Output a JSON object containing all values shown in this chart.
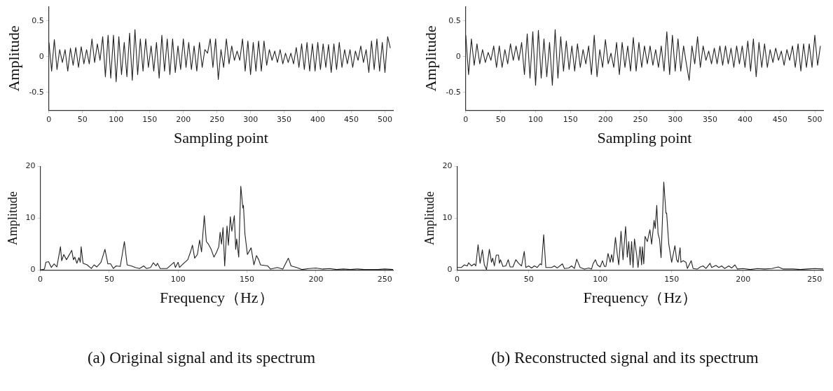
{
  "chart_data": [
    {
      "type": "line",
      "xlabel": "Sampling point",
      "ylabel": "Amplitude",
      "xlim": [
        0,
        512
      ],
      "ylim": [
        -0.75,
        0.7
      ],
      "xticks": [
        0,
        50,
        100,
        150,
        200,
        250,
        300,
        350,
        400,
        450,
        500
      ],
      "yticks": [
        -0.5,
        0,
        0.5
      ],
      "marker": "none",
      "series": [
        {
          "color": "#222222",
          "x": [
            0,
            4,
            8,
            12,
            16,
            20,
            24,
            28,
            32,
            36,
            40,
            44,
            48,
            52,
            56,
            60,
            64,
            68,
            72,
            76,
            80,
            84,
            88,
            92,
            96,
            100,
            104,
            108,
            112,
            116,
            120,
            124,
            128,
            132,
            136,
            140,
            144,
            148,
            152,
            156,
            160,
            164,
            168,
            172,
            176,
            180,
            184,
            188,
            192,
            196,
            200,
            204,
            208,
            212,
            216,
            220,
            224,
            228,
            232,
            236,
            240,
            244,
            248,
            252,
            256,
            260,
            264,
            268,
            272,
            276,
            280,
            284,
            288,
            292,
            296,
            300,
            304,
            308,
            312,
            316,
            320,
            324,
            328,
            332,
            336,
            340,
            344,
            348,
            352,
            356,
            360,
            364,
            368,
            372,
            376,
            380,
            384,
            388,
            392,
            396,
            400,
            404,
            408,
            412,
            416,
            420,
            424,
            428,
            432,
            436,
            440,
            444,
            448,
            452,
            456,
            460,
            464,
            468,
            472,
            476,
            480,
            484,
            488,
            492,
            496,
            500,
            504,
            508
          ],
          "values": [
            0.2,
            -0.2,
            0.24,
            -0.18,
            0.1,
            -0.08,
            0.1,
            -0.2,
            0.12,
            -0.12,
            0.13,
            -0.15,
            0.14,
            -0.1,
            0.1,
            -0.1,
            0.25,
            -0.08,
            0.18,
            -0.05,
            0.28,
            -0.28,
            0.3,
            -0.3,
            0.3,
            -0.35,
            0.28,
            -0.25,
            0.2,
            -0.28,
            0.33,
            -0.33,
            0.38,
            -0.25,
            0.25,
            -0.2,
            0.25,
            -0.15,
            0.15,
            -0.2,
            0.2,
            -0.3,
            0.3,
            -0.2,
            0.25,
            -0.25,
            0.25,
            -0.22,
            0.15,
            -0.18,
            0.25,
            -0.15,
            0.2,
            -0.18,
            0.15,
            -0.2,
            0.2,
            -0.15,
            0.1,
            0.05,
            0.25,
            -0.15,
            0.25,
            -0.32,
            0.1,
            -0.15,
            0.25,
            -0.1,
            0.15,
            -0.05,
            0.08,
            -0.05,
            0.25,
            -0.2,
            0.22,
            -0.25,
            0.2,
            -0.2,
            0.22,
            -0.2,
            0.22,
            -0.12,
            0.1,
            -0.05,
            0.08,
            -0.08,
            0.1,
            -0.1,
            0.05,
            -0.08,
            0.05,
            -0.1,
            0.13,
            -0.15,
            0.18,
            -0.18,
            0.2,
            -0.2,
            0.18,
            -0.2,
            0.2,
            -0.18,
            0.18,
            -0.15,
            0.17,
            -0.22,
            0.18,
            -0.18,
            0.2,
            -0.15,
            0.1,
            -0.1,
            0.1,
            -0.15,
            0.08,
            -0.05,
            0.15,
            -0.08,
            0.1,
            -0.22,
            0.22,
            -0.18,
            0.25,
            -0.2,
            0.2,
            -0.22,
            0.28,
            0.12
          ]
        }
      ]
    },
    {
      "type": "line",
      "xlabel": "Sampling point",
      "ylabel": "Amplitude",
      "xlim": [
        0,
        512
      ],
      "ylim": [
        -0.75,
        0.7
      ],
      "xticks": [
        0,
        50,
        100,
        150,
        200,
        250,
        300,
        350,
        400,
        450,
        500
      ],
      "yticks": [
        -0.5,
        0,
        0.5
      ],
      "marker": "none",
      "series": [
        {
          "color": "#222222",
          "x": [
            0,
            4,
            8,
            12,
            16,
            20,
            24,
            28,
            32,
            36,
            40,
            44,
            48,
            52,
            56,
            60,
            64,
            68,
            72,
            76,
            80,
            84,
            88,
            92,
            96,
            100,
            104,
            108,
            112,
            116,
            120,
            124,
            128,
            132,
            136,
            140,
            144,
            148,
            152,
            156,
            160,
            164,
            168,
            172,
            176,
            180,
            184,
            188,
            192,
            196,
            200,
            204,
            208,
            212,
            216,
            220,
            224,
            228,
            232,
            236,
            240,
            244,
            248,
            252,
            256,
            260,
            264,
            268,
            272,
            276,
            280,
            284,
            288,
            292,
            296,
            300,
            304,
            308,
            312,
            316,
            320,
            324,
            328,
            332,
            336,
            340,
            344,
            348,
            352,
            356,
            360,
            364,
            368,
            372,
            376,
            380,
            384,
            388,
            392,
            396,
            400,
            404,
            408,
            412,
            416,
            420,
            424,
            428,
            432,
            436,
            440,
            444,
            448,
            452,
            456,
            460,
            464,
            468,
            472,
            476,
            480,
            484,
            488,
            492,
            496,
            500,
            504,
            508
          ],
          "values": [
            0.3,
            -0.25,
            0.25,
            -0.12,
            0.18,
            -0.1,
            0.1,
            -0.08,
            0.06,
            -0.05,
            0.15,
            -0.15,
            0.15,
            -0.15,
            0.1,
            -0.1,
            0.18,
            -0.05,
            0.15,
            -0.05,
            0.2,
            -0.25,
            0.32,
            -0.3,
            0.35,
            -0.4,
            0.37,
            -0.3,
            0.25,
            -0.28,
            0.2,
            -0.4,
            0.38,
            -0.3,
            0.28,
            -0.2,
            0.22,
            -0.18,
            0.15,
            -0.2,
            0.18,
            -0.15,
            0.1,
            -0.1,
            0.15,
            -0.25,
            0.3,
            -0.28,
            0.1,
            -0.15,
            0.24,
            -0.1,
            0.05,
            -0.15,
            0.2,
            -0.25,
            0.2,
            -0.15,
            0.15,
            -0.2,
            0.27,
            -0.2,
            0.2,
            -0.15,
            0.15,
            -0.1,
            0.15,
            -0.12,
            0.1,
            -0.15,
            0.15,
            -0.2,
            0.35,
            -0.25,
            0.3,
            -0.2,
            0.25,
            -0.2,
            0.15,
            -0.1,
            -0.33,
            0.15,
            -0.1,
            0.28,
            -0.15,
            0.15,
            -0.05,
            0.08,
            -0.1,
            0.12,
            -0.1,
            0.15,
            -0.12,
            0.15,
            -0.1,
            0.12,
            -0.15,
            0.15,
            -0.1,
            0.15,
            -0.15,
            0.22,
            -0.2,
            0.25,
            -0.28,
            0.2,
            -0.15,
            0.18,
            -0.15,
            0.1,
            -0.08,
            0.12,
            -0.05,
            0.08,
            -0.12,
            0.1,
            -0.05,
            0.15,
            -0.15,
            0.18,
            -0.2,
            0.18,
            -0.15,
            0.18,
            -0.15,
            0.3,
            -0.12,
            0.15
          ]
        }
      ]
    },
    {
      "type": "line",
      "xlabel": "Frequency（Hz）",
      "ylabel": "Amplitude",
      "xlim": [
        0,
        256
      ],
      "ylim": [
        0,
        20
      ],
      "xticks": [
        0,
        50,
        100,
        150,
        200,
        250
      ],
      "yticks": [
        0,
        10,
        20
      ],
      "marker": "none",
      "annotations": [
        "(a) Original signal and its spectrum"
      ],
      "series": [
        {
          "color": "#222222",
          "x": [
            0,
            3,
            4,
            6,
            8,
            10,
            12,
            14.6,
            15.5,
            17,
            19,
            22.8,
            24,
            25,
            26.5,
            28,
            29,
            29.6,
            31,
            34,
            37,
            39,
            41,
            44,
            46.9,
            49,
            51,
            53,
            55,
            58,
            61,
            63,
            66,
            69,
            72,
            75,
            77,
            80,
            82,
            84,
            85,
            87,
            92,
            97,
            98,
            100,
            101,
            104,
            107,
            109,
            110.4,
            112,
            114,
            115.6,
            117,
            119,
            120.5,
            122,
            124,
            126,
            128,
            129.5,
            130.5,
            131.5,
            132.6,
            133.8,
            135.5,
            136.5,
            137.9,
            139,
            140.8,
            141.8,
            142.5,
            144,
            145.5,
            147,
            147.4,
            148.5,
            150.3,
            153,
            155,
            156.9,
            158.5,
            159.8,
            165,
            167,
            172,
            176,
            180,
            182,
            186,
            190,
            195,
            200,
            205,
            210,
            215,
            220,
            225,
            230,
            235,
            240,
            245,
            250,
            256
          ],
          "values": [
            0,
            0.2,
            1.5,
            1.6,
            0.5,
            1.2,
            0.6,
            4.5,
            1.8,
            3,
            2,
            3.8,
            2,
            2.5,
            1.3,
            2.4,
            1.5,
            4.5,
            1.3,
            1,
            0.3,
            1,
            0.6,
            1.5,
            4,
            1.2,
            1.2,
            0.3,
            0.8,
            0.7,
            5.5,
            1,
            0.8,
            0.5,
            0.3,
            0.8,
            0.3,
            0.5,
            1.4,
            0.8,
            1.3,
            0.3,
            0.3,
            1.5,
            0.5,
            1.5,
            0.5,
            1.3,
            2,
            3.5,
            4.8,
            2.3,
            3,
            5.8,
            3.5,
            10.5,
            5.5,
            5,
            4,
            2.5,
            3.5,
            4.5,
            7.3,
            5,
            8.2,
            0.8,
            8.5,
            4.8,
            10.3,
            7.5,
            10.5,
            4,
            6,
            2.5,
            16.2,
            12,
            12.5,
            7,
            3,
            4.3,
            1,
            2.8,
            2,
            1,
            0.8,
            0.2,
            0.5,
            0.2,
            2.3,
            0.8,
            0.5,
            0.1,
            0.3,
            0.4,
            0.2,
            0.3,
            0.1,
            0.2,
            0.1,
            0.2,
            0.1,
            0.1,
            0.1,
            0.2,
            0.1
          ]
        }
      ]
    },
    {
      "type": "line",
      "xlabel": "Frequency（Hz）",
      "ylabel": "Amplitude",
      "xlim": [
        0,
        256
      ],
      "ylim": [
        0,
        20
      ],
      "xticks": [
        0,
        50,
        100,
        150,
        200,
        250
      ],
      "yticks": [
        0,
        10,
        20
      ],
      "marker": "none",
      "annotations": [
        "(b) Reconstructed signal and its spectrum"
      ],
      "series": [
        {
          "color": "#222222",
          "x": [
            0,
            3,
            5,
            7,
            8,
            10,
            12,
            13,
            14.6,
            16,
            17.6,
            19,
            20.5,
            22.5,
            24,
            24.8,
            26,
            27.3,
            28.9,
            29.5,
            30.3,
            32,
            34,
            35.7,
            37,
            39,
            41,
            43,
            45,
            46.9,
            48,
            50,
            52,
            54,
            56,
            58,
            59,
            60.5,
            62,
            66,
            68,
            70,
            73.6,
            75,
            78,
            80,
            82,
            83.6,
            86,
            89,
            92,
            94,
            95,
            96.7,
            98,
            100,
            101.6,
            103,
            104,
            105.5,
            107,
            108,
            109,
            110.7,
            112,
            113,
            114.6,
            116,
            117.8,
            119,
            120,
            121,
            122,
            123,
            124,
            125.5,
            126.5,
            127.9,
            129,
            129.5,
            130.5,
            131.4,
            133,
            134.8,
            136,
            137.7,
            138.5,
            139.6,
            140.5,
            141.5,
            142.6,
            144.5,
            146,
            146.5,
            148,
            150,
            152.3,
            153.5,
            154.5,
            155.9,
            156.5,
            158,
            160,
            161,
            163.7,
            165,
            168,
            170,
            172,
            174,
            176.8,
            178,
            181,
            183,
            185,
            187,
            190,
            192,
            194.3,
            196,
            200,
            205,
            210,
            215,
            220,
            224.6,
            228,
            235,
            240,
            245,
            250,
            256
          ],
          "values": [
            0.5,
            0.5,
            1,
            0.8,
            1.4,
            0.8,
            1.2,
            0.8,
            4.9,
            1.3,
            3.9,
            1,
            0.1,
            4,
            1.5,
            2.3,
            0.8,
            2.9,
            2.9,
            1.3,
            2,
            0.7,
            0.8,
            2,
            0.6,
            0.6,
            2,
            1.3,
            0.8,
            3.6,
            0.5,
            0.8,
            0.4,
            0.8,
            0.5,
            1.2,
            1,
            6.8,
            0.5,
            0.5,
            0.8,
            0.4,
            1.2,
            0.3,
            0.4,
            0.8,
            0.3,
            2.1,
            0.5,
            0.2,
            0.4,
            0.2,
            1.2,
            2,
            1,
            0.6,
            1.8,
            0.7,
            0.7,
            3.2,
            1.5,
            3,
            1.5,
            6.3,
            3,
            1,
            7.5,
            2,
            8.4,
            2.5,
            5.5,
            1,
            5.5,
            0.5,
            6,
            3,
            0.5,
            4.5,
            1,
            4.5,
            1.2,
            6.5,
            5.5,
            7.8,
            5,
            9.6,
            8,
            12.5,
            7,
            6,
            2.4,
            17,
            11,
            11,
            5,
            1.5,
            4.7,
            2,
            1.5,
            4.3,
            1.5,
            1.8,
            1.5,
            0.3,
            1.8,
            0.3,
            0.2,
            0.6,
            0.8,
            0.3,
            1.3,
            0.5,
            0.9,
            0.5,
            0.8,
            0.3,
            0.8,
            0.4,
            1,
            0.2,
            0.3,
            0.1,
            0.3,
            0.2,
            0.3,
            0.6,
            0.2,
            0.2,
            0.1,
            0.2,
            0.3,
            0.2
          ]
        }
      ]
    }
  ]
}
